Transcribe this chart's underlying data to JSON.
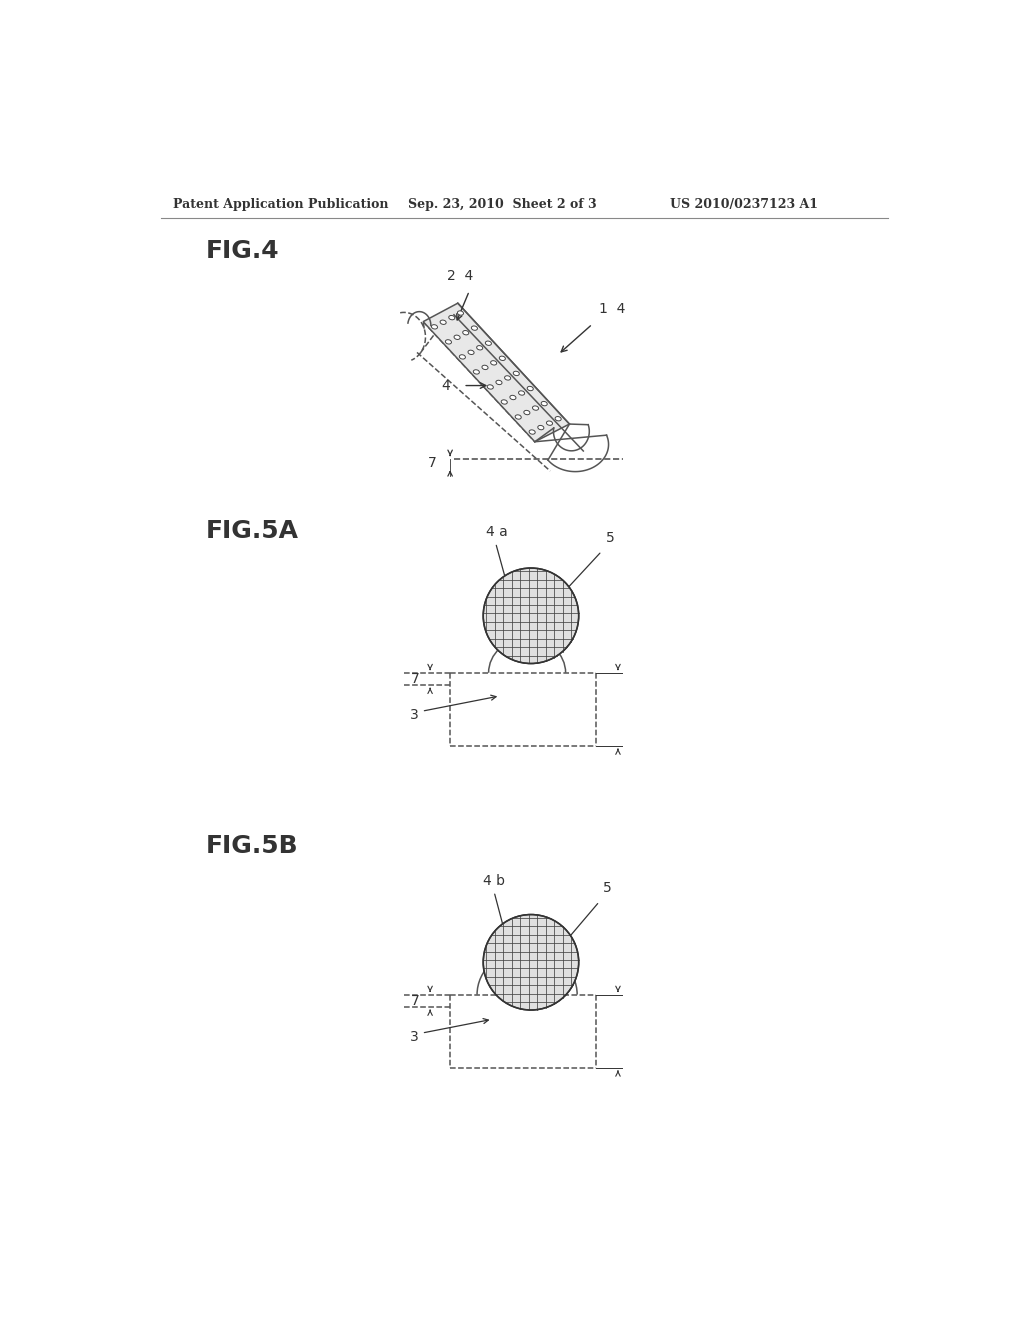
{
  "bg_color": "#ffffff",
  "header_left": "Patent Application Publication",
  "header_center": "Sep. 23, 2010  Sheet 2 of 3",
  "header_right": "US 2010/0237123 A1",
  "fig4_label": "FIG.4",
  "fig5a_label": "FIG.5A",
  "fig5b_label": "FIG.5B",
  "line_color": "#555555",
  "dark_color": "#333333",
  "label_color": "#444444"
}
